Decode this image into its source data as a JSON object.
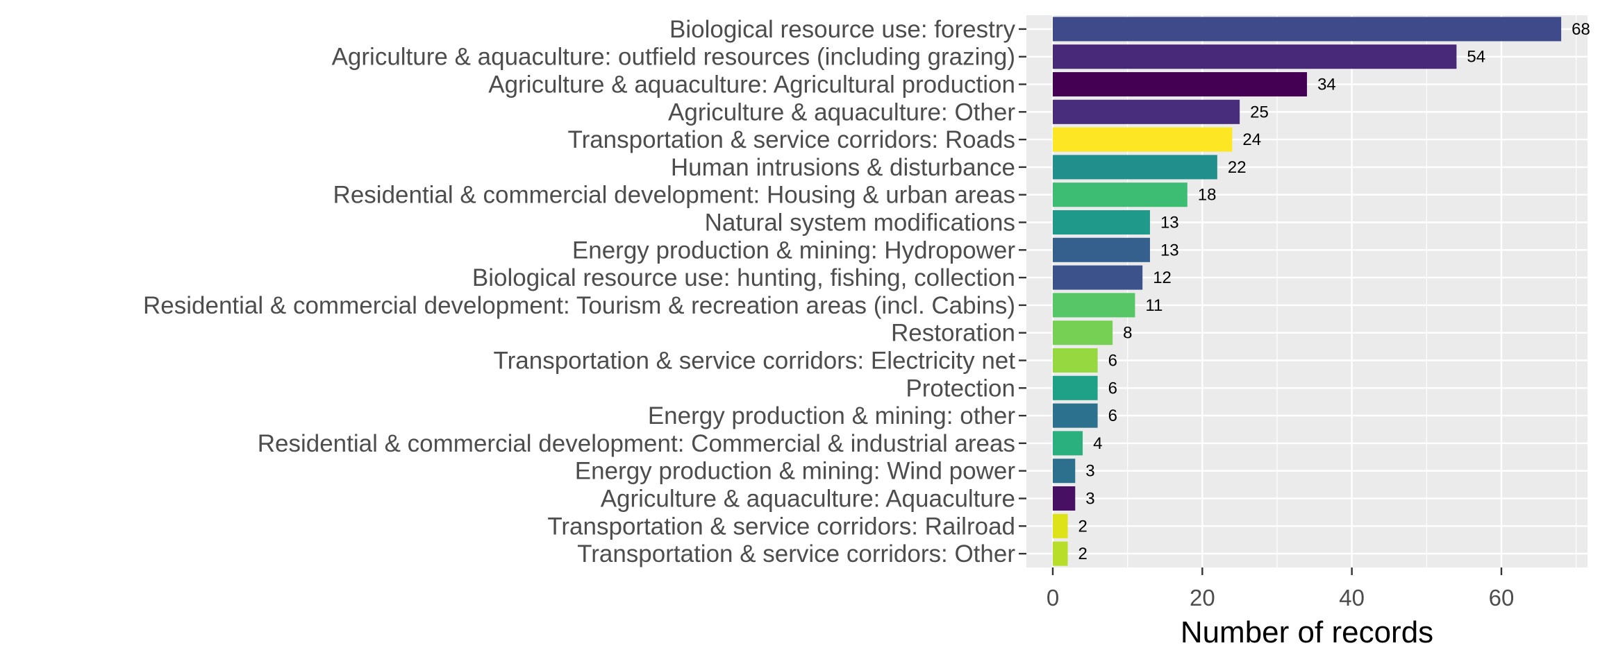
{
  "chart_data": {
    "type": "bar",
    "orientation": "horizontal",
    "title": "",
    "xlabel": "Number of records",
    "ylabel": "",
    "xlim": [
      0,
      72
    ],
    "xticks": [
      0,
      20,
      40,
      60
    ],
    "grid": true,
    "legend": "none",
    "categories": [
      "Biological resource use: forestry",
      "Agriculture & aquaculture: outfield resources (including grazing)",
      "Agriculture & aquaculture: Agricultural production",
      "Agriculture & aquaculture: Other",
      "Transportation & service corridors: Roads",
      "Human intrusions & disturbance",
      "Residential & commercial development: Housing & urban areas",
      "Natural system modifications",
      "Energy production & mining: Hydropower",
      "Biological resource use: hunting, fishing, collection",
      "Residential & commercial development: Tourism & recreation areas (incl. Cabins)",
      "Restoration",
      "Transportation & service corridors: Electricity net",
      "Protection",
      "Energy production & mining: other",
      "Residential & commercial development: Commercial & industrial areas",
      "Energy production & mining: Wind power",
      "Agriculture & aquaculture: Aquaculture",
      "Transportation & service corridors: Railroad",
      "Transportation & service corridors: Other"
    ],
    "values": [
      68,
      54,
      34,
      25,
      24,
      22,
      18,
      13,
      13,
      12,
      11,
      8,
      6,
      6,
      6,
      4,
      3,
      3,
      2,
      2
    ],
    "value_labels": [
      "68",
      "54",
      "34",
      "25",
      "24",
      "22",
      "18",
      "13",
      "13",
      "12",
      "11",
      "8",
      "6",
      "6",
      "6",
      "4",
      "3",
      "3",
      "2",
      "2"
    ],
    "tick_labels": [
      "0",
      "20",
      "40",
      "60"
    ],
    "colors": [
      "#3e4a89",
      "#482878",
      "#440154",
      "#472d7b",
      "#fde725",
      "#21908d",
      "#3dbc74",
      "#1f9a8a",
      "#355f8d",
      "#3b528b",
      "#56c667",
      "#75d054",
      "#95d840",
      "#1fa187",
      "#2c728e",
      "#2ab07f",
      "#2d708e",
      "#471063",
      "#dde318",
      "#b8de29"
    ]
  }
}
